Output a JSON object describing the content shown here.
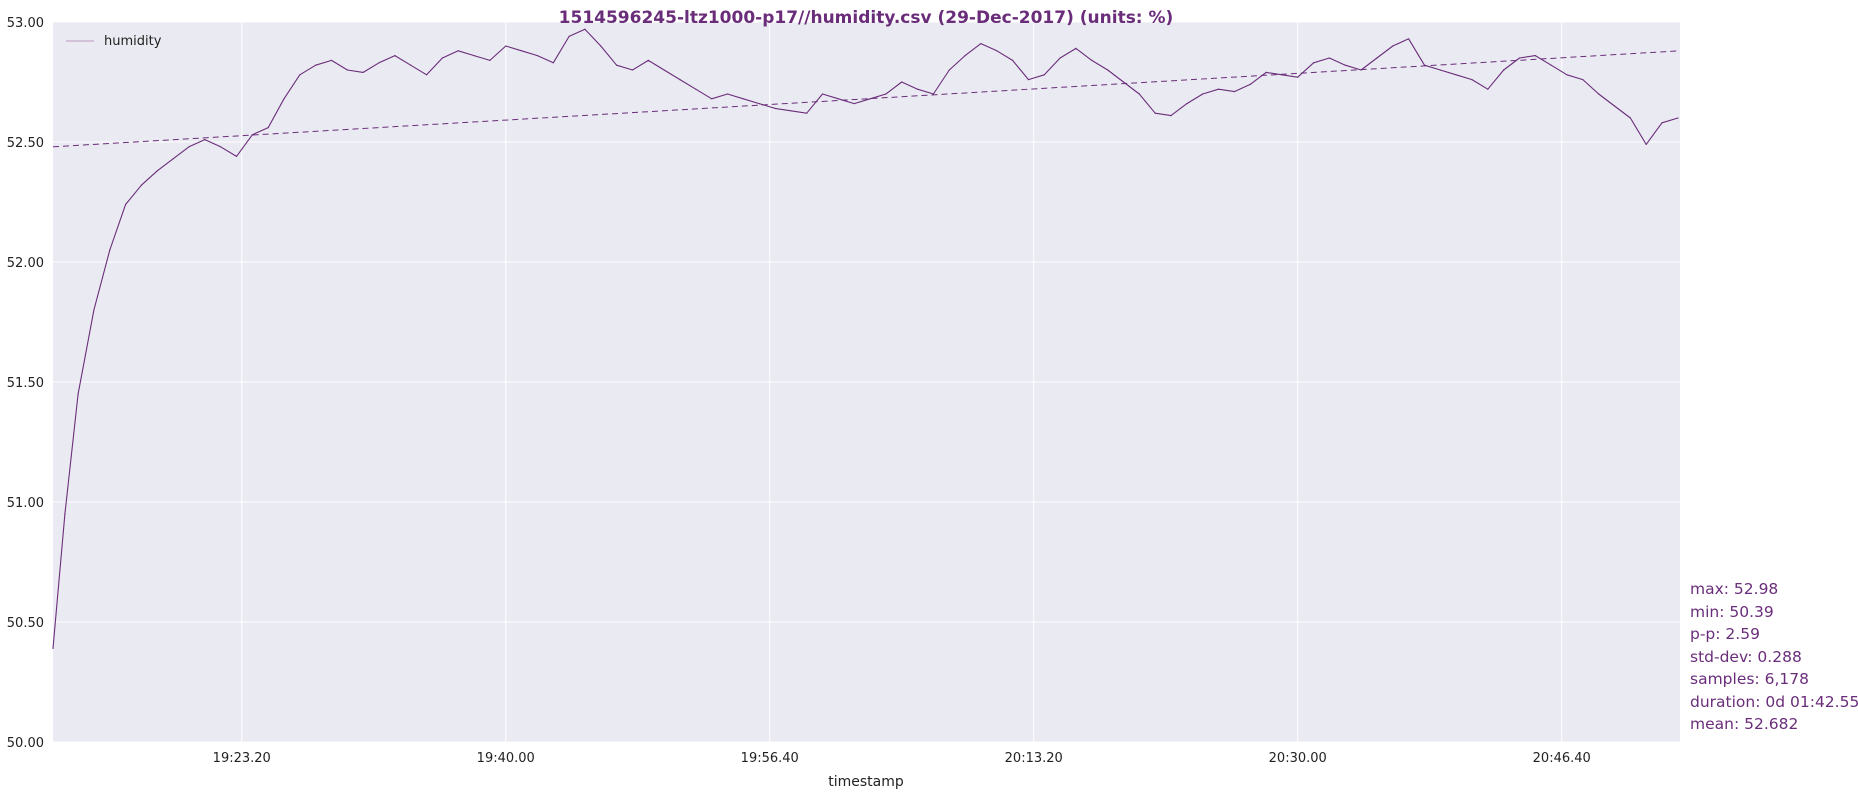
{
  "chart_data": {
    "type": "line",
    "title": "1514596245-ltz1000-p17//humidity.csv (29-Dec-2017) (units: %)",
    "xlabel": "timestamp",
    "ylabel": "",
    "ylim": [
      50.0,
      53.0
    ],
    "y_ticks": [
      "50.00",
      "50.50",
      "51.00",
      "51.50",
      "52.00",
      "52.50",
      "53.00"
    ],
    "x_axis": {
      "start": "19:11:25",
      "end": "20:54:08",
      "ticks": [
        "19:23.20",
        "19:40.00",
        "19:56.40",
        "20:13.20",
        "20:30.00",
        "20:46.40"
      ],
      "tick_times": [
        "19:23:20",
        "19:40:00",
        "19:56:40",
        "20:13:20",
        "20:30:00",
        "20:46:40"
      ]
    },
    "grid": true,
    "legend_placement": "top-left",
    "series": [
      {
        "name": "humidity",
        "color": "#6a2d7a",
        "x": [
          "19:11:25",
          "19:12:10",
          "19:13:00",
          "19:14:00",
          "19:15:00",
          "19:16:00",
          "19:17:00",
          "19:18:00",
          "19:19:00",
          "19:20:00",
          "19:21:00",
          "19:22:00",
          "19:23:00",
          "19:24:00",
          "19:25:00",
          "19:26:00",
          "19:27:00",
          "19:28:00",
          "19:29:00",
          "19:30:00",
          "19:31:00",
          "19:32:00",
          "19:33:00",
          "19:34:00",
          "19:35:00",
          "19:36:00",
          "19:37:00",
          "19:38:00",
          "19:39:00",
          "19:40:00",
          "19:41:00",
          "19:42:00",
          "19:43:00",
          "19:44:00",
          "19:45:00",
          "19:46:00",
          "19:47:00",
          "19:48:00",
          "19:49:00",
          "19:50:00",
          "19:51:00",
          "19:52:00",
          "19:53:00",
          "19:54:00",
          "19:55:00",
          "19:56:00",
          "19:57:00",
          "19:58:00",
          "19:59:00",
          "20:00:00",
          "20:01:00",
          "20:02:00",
          "20:03:00",
          "20:04:00",
          "20:05:00",
          "20:06:00",
          "20:07:00",
          "20:08:00",
          "20:09:00",
          "20:10:00",
          "20:11:00",
          "20:12:00",
          "20:13:00",
          "20:14:00",
          "20:15:00",
          "20:16:00",
          "20:17:00",
          "20:18:00",
          "20:19:00",
          "20:20:00",
          "20:21:00",
          "20:22:00",
          "20:23:00",
          "20:24:00",
          "20:25:00",
          "20:26:00",
          "20:27:00",
          "20:28:00",
          "20:29:00",
          "20:30:00",
          "20:31:00",
          "20:32:00",
          "20:33:00",
          "20:34:00",
          "20:35:00",
          "20:36:00",
          "20:37:00",
          "20:38:00",
          "20:39:00",
          "20:40:00",
          "20:41:00",
          "20:42:00",
          "20:43:00",
          "20:44:00",
          "20:45:00",
          "20:46:00",
          "20:47:00",
          "20:48:00",
          "20:49:00",
          "20:50:00",
          "20:51:00",
          "20:52:00",
          "20:53:00",
          "20:54:00"
        ],
        "values": [
          50.39,
          50.95,
          51.45,
          51.8,
          52.05,
          52.24,
          52.32,
          52.38,
          52.43,
          52.48,
          52.51,
          52.48,
          52.44,
          52.53,
          52.56,
          52.68,
          52.78,
          52.82,
          52.84,
          52.8,
          52.79,
          52.83,
          52.86,
          52.82,
          52.78,
          52.85,
          52.88,
          52.86,
          52.84,
          52.9,
          52.88,
          52.86,
          52.83,
          52.94,
          52.97,
          52.9,
          52.82,
          52.8,
          52.84,
          52.8,
          52.76,
          52.72,
          52.68,
          52.7,
          52.68,
          52.66,
          52.64,
          52.63,
          52.62,
          52.7,
          52.68,
          52.66,
          52.68,
          52.7,
          52.75,
          52.72,
          52.7,
          52.8,
          52.86,
          52.91,
          52.88,
          52.84,
          52.76,
          52.78,
          52.85,
          52.89,
          52.84,
          52.8,
          52.75,
          52.7,
          52.62,
          52.61,
          52.66,
          52.7,
          52.72,
          52.71,
          52.74,
          52.79,
          52.78,
          52.77,
          52.83,
          52.85,
          52.82,
          52.8,
          52.85,
          52.9,
          52.93,
          52.82,
          52.8,
          52.78,
          52.76,
          52.72,
          52.8,
          52.85,
          52.86,
          52.82,
          52.78,
          52.76,
          52.7,
          52.65,
          52.6,
          52.49,
          52.58,
          52.6
        ]
      },
      {
        "name": "",
        "style": "dashed",
        "color": "#6a2d7a",
        "x": [
          "19:11:25",
          "20:54:08"
        ],
        "values": [
          52.48,
          52.88
        ]
      }
    ],
    "stats": [
      "max: 52.98",
      "min: 50.39",
      "p-p: 2.59",
      "std-dev: 0.288",
      "samples: 6,178",
      "duration: 0d 01:42.55",
      "mean: 52.682"
    ],
    "colors": {
      "plot_background": "#eaeaf2",
      "grid": "#ffffff",
      "accent": "#6a2d7a"
    }
  }
}
